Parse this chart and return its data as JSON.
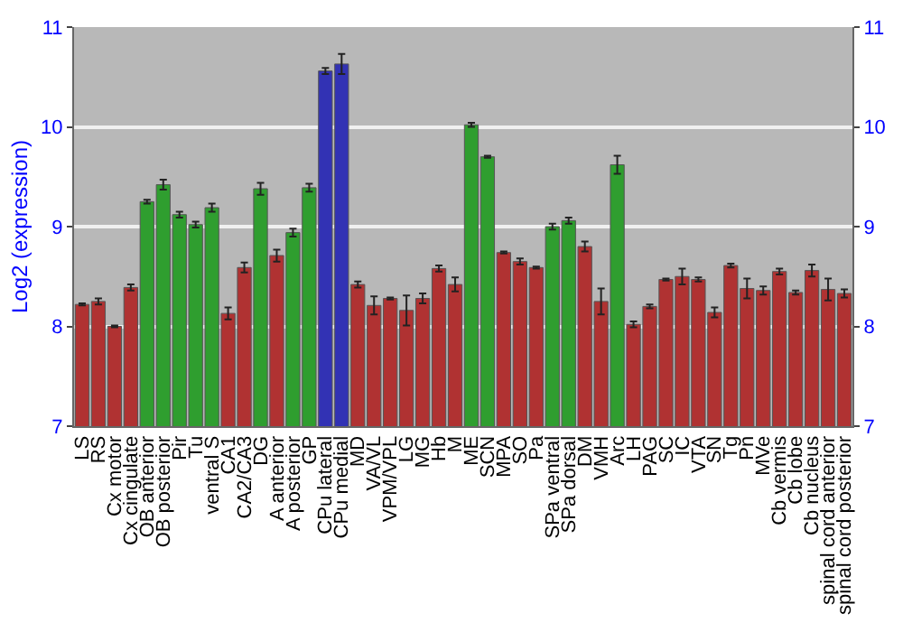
{
  "chart_data": {
    "type": "bar",
    "ylabel": "Log2 (expression)",
    "categories": [
      "LS",
      "RS",
      "Cx motor",
      "Cx cingulate",
      "OB anterior",
      "OB posterior",
      "Pir",
      "Tu",
      "ventral S",
      "CA1",
      "CA2/CA3",
      "DG",
      "A anterior",
      "A posterior",
      "GP",
      "CPu lateral",
      "CPu medial",
      "MD",
      "VA/VL",
      "VPM/VPL",
      "LG",
      "MG",
      "Hb",
      "M",
      "ME",
      "SCN",
      "MPA",
      "SO",
      "Pa",
      "SPa ventral",
      "SPa dorsal",
      "DM",
      "VMH",
      "Arc",
      "LH",
      "PAG",
      "SC",
      "IC",
      "VTA",
      "SN",
      "Tg",
      "Pn",
      "MVe",
      "Cb vermis",
      "Cb lobe",
      "Cb nucleus",
      "spinal cord anterior",
      "spinal cord posterior"
    ],
    "values": [
      8.22,
      8.25,
      8.0,
      8.39,
      9.25,
      9.42,
      9.12,
      9.02,
      9.19,
      8.13,
      8.59,
      9.38,
      8.71,
      8.94,
      9.39,
      10.56,
      10.63,
      8.42,
      8.21,
      8.28,
      8.16,
      8.28,
      8.58,
      8.42,
      10.02,
      9.7,
      8.74,
      8.65,
      8.59,
      9.0,
      9.06,
      8.8,
      8.25,
      9.62,
      8.02,
      8.2,
      8.47,
      8.5,
      8.47,
      8.14,
      8.61,
      8.38,
      8.36,
      8.55,
      8.34,
      8.56,
      8.37,
      8.33
    ],
    "errors": [
      0.01,
      0.03,
      0.01,
      0.03,
      0.02,
      0.05,
      0.03,
      0.03,
      0.04,
      0.06,
      0.05,
      0.06,
      0.06,
      0.04,
      0.04,
      0.03,
      0.1,
      0.03,
      0.09,
      0.01,
      0.15,
      0.05,
      0.03,
      0.07,
      0.02,
      0.01,
      0.01,
      0.03,
      0.01,
      0.03,
      0.03,
      0.05,
      0.13,
      0.09,
      0.03,
      0.02,
      0.01,
      0.08,
      0.02,
      0.05,
      0.02,
      0.1,
      0.04,
      0.03,
      0.02,
      0.06,
      0.11,
      0.04
    ],
    "colors": [
      "#b03232",
      "#b03232",
      "#b03232",
      "#b03232",
      "#2f9e2f",
      "#2f9e2f",
      "#2f9e2f",
      "#2f9e2f",
      "#2f9e2f",
      "#b03232",
      "#b03232",
      "#2f9e2f",
      "#b03232",
      "#2f9e2f",
      "#2f9e2f",
      "#3232b4",
      "#3232b4",
      "#b03232",
      "#b03232",
      "#b03232",
      "#b03232",
      "#b03232",
      "#b03232",
      "#b03232",
      "#2f9e2f",
      "#2f9e2f",
      "#b03232",
      "#b03232",
      "#b03232",
      "#2f9e2f",
      "#2f9e2f",
      "#b03232",
      "#b03232",
      "#2f9e2f",
      "#b03232",
      "#b03232",
      "#b03232",
      "#b03232",
      "#b03232",
      "#b03232",
      "#b03232",
      "#b03232",
      "#b03232",
      "#b03232",
      "#b03232",
      "#b03232",
      "#b03232",
      "#b03232"
    ],
    "ylim": [
      7,
      11
    ],
    "yticks": [
      7,
      8,
      9,
      10,
      11
    ],
    "y2lim": [
      7,
      11
    ],
    "y2ticks": [
      7,
      8,
      9,
      10,
      11
    ],
    "grid": "y"
  }
}
